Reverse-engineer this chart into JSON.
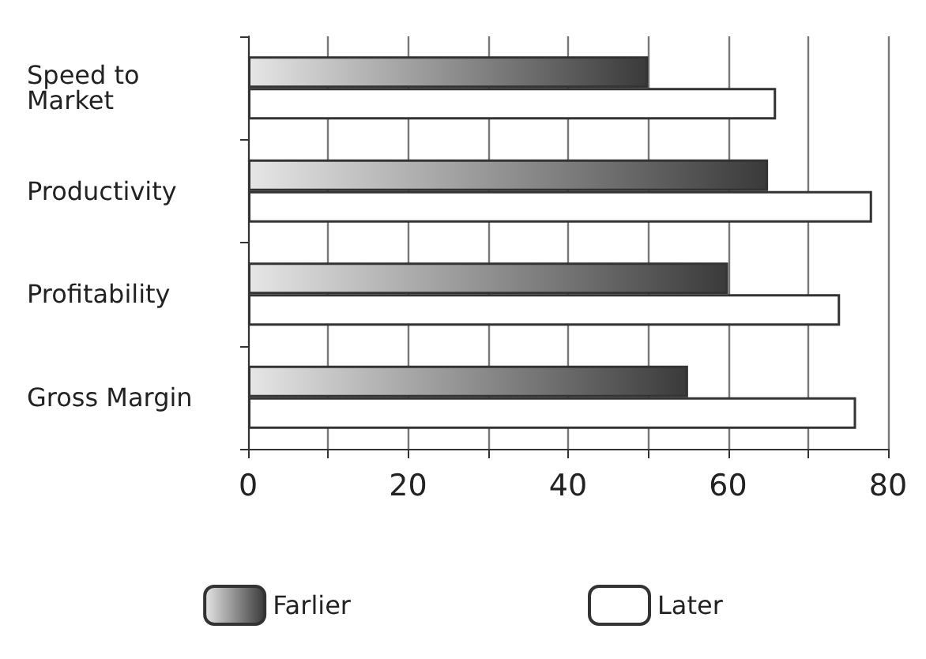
{
  "chart_data": {
    "type": "bar",
    "orientation": "horizontal",
    "categories": [
      "Speed to Market",
      "Productivity",
      "Profitability",
      "Gross Margin"
    ],
    "series": [
      {
        "name": "Farlier",
        "color": "#3a3a3a",
        "values": [
          50,
          65,
          60,
          55
        ]
      },
      {
        "name": "Later",
        "color": "#ffffff",
        "values": [
          66,
          78,
          74,
          76
        ]
      }
    ],
    "xlim": [
      0,
      80
    ],
    "xticks": [
      0,
      {
        "value": 10,
        "label": null
      },
      20,
      {
        "value": 30,
        "label": null
      },
      40,
      {
        "value": 50,
        "label": null
      },
      60,
      {
        "value": 70,
        "label": null
      },
      80
    ],
    "grid": "x",
    "legend": "bottom"
  }
}
